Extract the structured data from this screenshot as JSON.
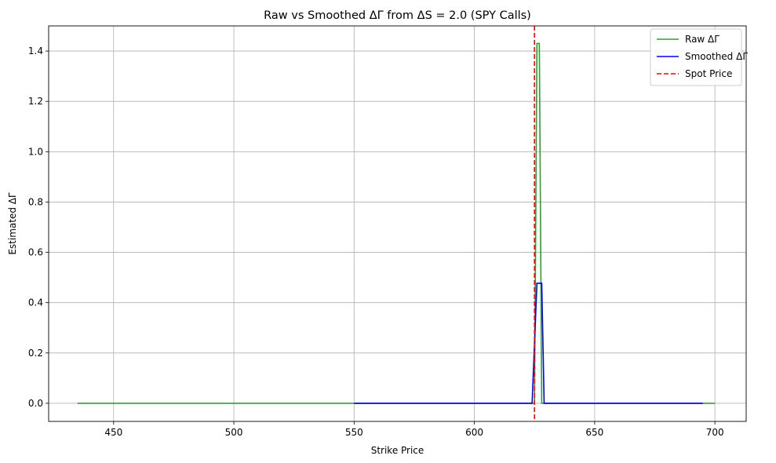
{
  "chart_data": {
    "type": "line",
    "title": "Raw vs Smoothed ΔΓ from ΔS = 2.0 (SPY Calls)",
    "xlabel": "Strike Price",
    "ylabel": "Estimated ΔΓ",
    "xlim": [
      423,
      713
    ],
    "ylim": [
      -0.072,
      1.5
    ],
    "xticks": [
      450,
      500,
      550,
      600,
      650,
      700
    ],
    "yticks": [
      0.0,
      0.2,
      0.4,
      0.6,
      0.8,
      1.0,
      1.2,
      1.4
    ],
    "grid": true,
    "legend_position": "top-right",
    "series": [
      {
        "name": "Raw ΔΓ",
        "color": "#2ca02c",
        "x": [
          435,
          625,
          626,
          627,
          628,
          700
        ],
        "y": [
          0,
          0,
          1.43,
          1.43,
          0,
          0
        ]
      },
      {
        "name": "Smoothed ΔΓ",
        "color": "#0000ff",
        "x": [
          550,
          624,
          626,
          628,
          629,
          695
        ],
        "y": [
          0,
          0,
          0.477,
          0.477,
          0,
          0
        ]
      }
    ],
    "vlines": [
      {
        "name": "Spot Price",
        "x": 625,
        "color": "#ff0000",
        "style": "dashed"
      }
    ]
  }
}
